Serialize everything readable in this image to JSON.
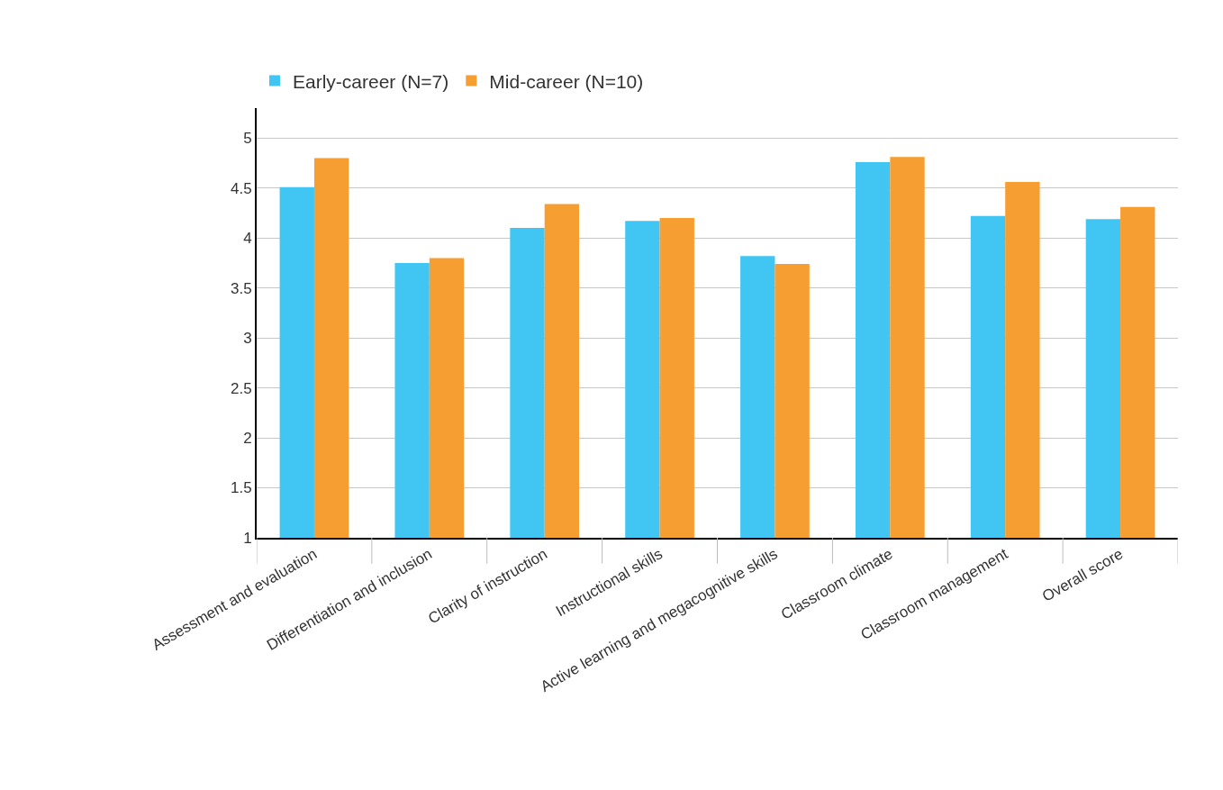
{
  "chart_data": {
    "type": "bar",
    "categories": [
      "Assessment and evaluation",
      "Differentiation and inclusion",
      "Clarity of instruction",
      "Instructional skills",
      "Active learning and megacognitive skills",
      "Classroom climate",
      "Classroom management",
      "Overall score"
    ],
    "series": [
      {
        "name": "Early-career (N=7)",
        "color": "#41c6f4",
        "values": [
          4.51,
          3.75,
          4.1,
          4.17,
          3.82,
          4.76,
          4.22,
          4.19
        ]
      },
      {
        "name": "Mid-career (N=10)",
        "color": "#f79e32",
        "values": [
          4.8,
          3.8,
          4.34,
          4.2,
          3.74,
          4.81,
          4.56,
          4.31
        ]
      }
    ],
    "ylim": [
      1,
      5.3
    ],
    "yticks": [
      1,
      1.5,
      2,
      2.5,
      3,
      3.5,
      4,
      4.5,
      5
    ],
    "grid": "y",
    "legend": "top left"
  }
}
